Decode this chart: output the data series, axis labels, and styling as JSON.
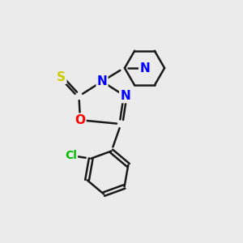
{
  "background_color": "#ebebeb",
  "atom_colors": {
    "S": "#cccc00",
    "O": "#ff0000",
    "N": "#0000ff",
    "Cl": "#00bb00",
    "C": "#1a1a1a"
  },
  "bond_color": "#1a1a1a",
  "bond_width": 1.8,
  "figsize": [
    3.0,
    3.0
  ],
  "dpi": 100
}
